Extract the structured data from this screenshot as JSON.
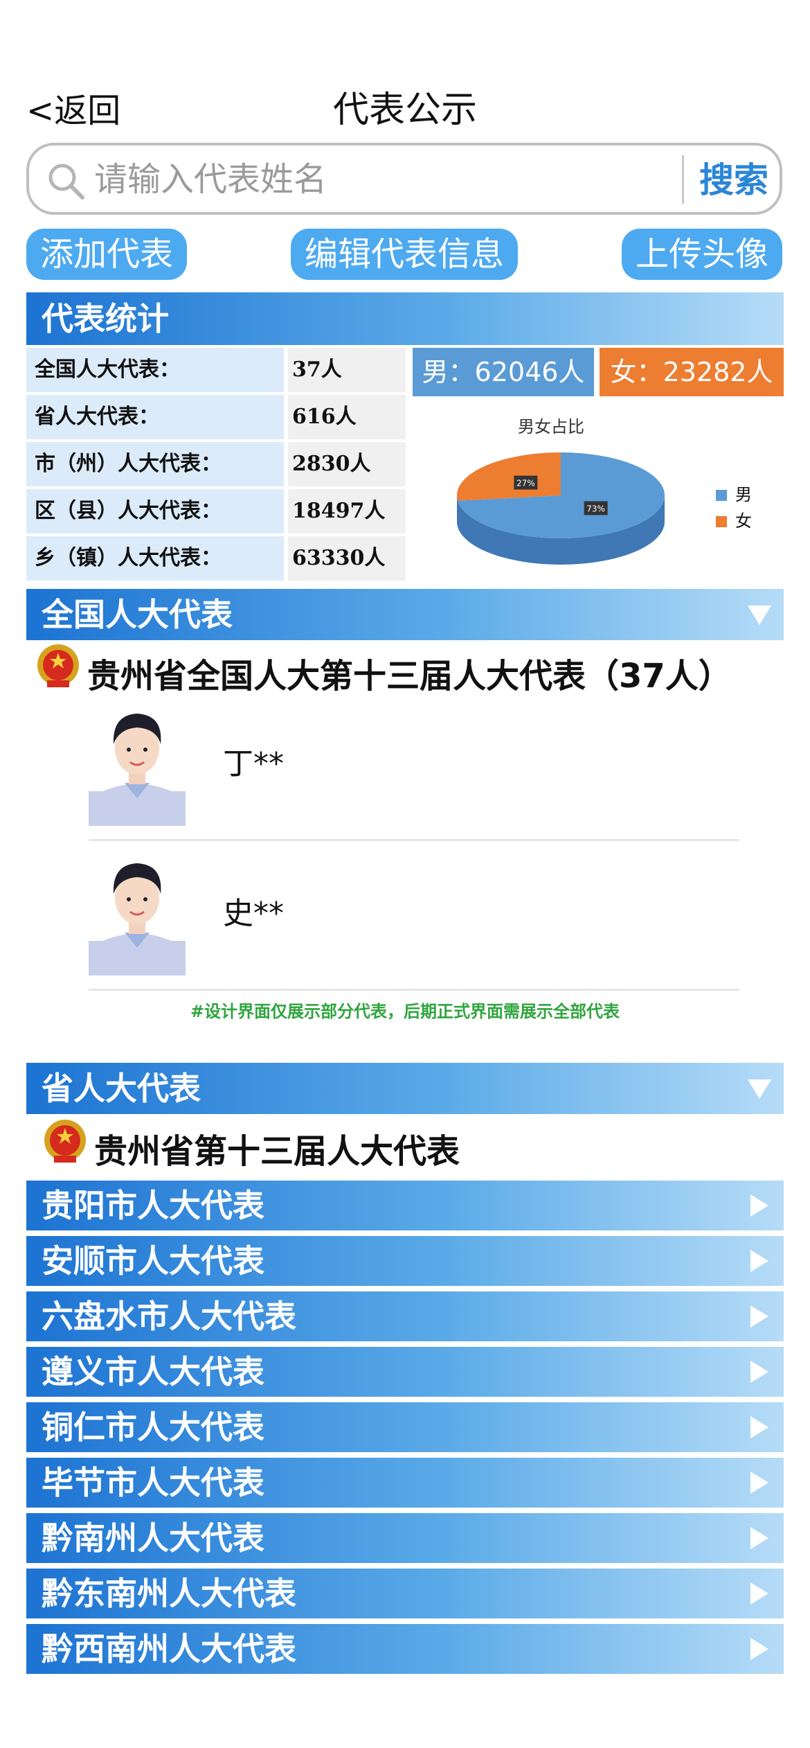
{
  "header": {
    "back_label": "<返回",
    "title": "代表公示"
  },
  "search": {
    "placeholder": "请输入代表姓名",
    "value": "",
    "button_label": "搜索"
  },
  "actions": {
    "add_label": "添加代表",
    "edit_label": "编辑代表信息",
    "upload_label": "上传头像"
  },
  "stats": {
    "title": "代表统计",
    "rows": [
      {
        "label": "全国人大代表：",
        "value": "37人"
      },
      {
        "label": "省人大代表：",
        "value": "616人"
      },
      {
        "label": "市（州）人大代表：",
        "value": "2830人"
      },
      {
        "label": "区（县）人大代表：",
        "value": "18497人"
      },
      {
        "label": "乡（镇）人大代表：",
        "value": "63330人"
      }
    ],
    "male_label": "男：62046人",
    "female_label": "女：23282人",
    "male_color": "#5b9bd5",
    "female_color": "#ed7d31"
  },
  "chart_data": {
    "type": "pie",
    "title": "男女占比",
    "categories": [
      "男",
      "女"
    ],
    "values": [
      73,
      27
    ],
    "data_labels": [
      "73%",
      "27%"
    ],
    "colors": [
      "#5b9bd5",
      "#ed7d31"
    ],
    "legend": "right"
  },
  "national": {
    "band_label": "全国人大代表",
    "heading": "贵州省全国人大第十三届人大代表（37人）",
    "reps": [
      {
        "name": "丁**"
      },
      {
        "name": "史**"
      }
    ],
    "note": "#设计界面仅展示部分代表，后期正式界面需展示全部代表"
  },
  "provincial": {
    "band_label": "省人大代表",
    "heading": "贵州省第十三届人大代表",
    "cities": [
      {
        "label": "贵阳市人大代表"
      },
      {
        "label": "安顺市人大代表"
      },
      {
        "label": "六盘水市人大代表"
      },
      {
        "label": "遵义市人大代表"
      },
      {
        "label": "铜仁市人大代表"
      },
      {
        "label": "毕节市人大代表"
      },
      {
        "label": "黔南州人大代表"
      },
      {
        "label": "黔东南州人大代表"
      },
      {
        "label": "黔西南州人大代表"
      }
    ]
  }
}
